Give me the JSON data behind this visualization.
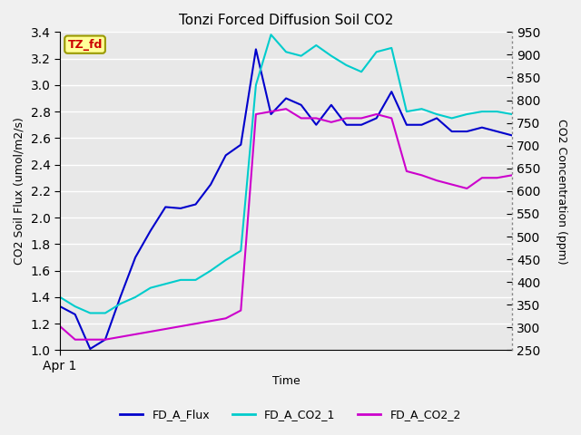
{
  "title": "Tonzi Forced Diffusion Soil CO2",
  "xlabel": "Time",
  "ylabel_left": "CO2 Soil Flux (umol/m2/s)",
  "ylabel_right": "CO2 Concentration (ppm)",
  "ylim_left": [
    1.0,
    3.4
  ],
  "ylim_right": [
    250,
    950
  ],
  "x_tick_labels": [
    "Apr 1"
  ],
  "tag_label": "TZ_fd",
  "tag_color": "#cc0000",
  "tag_bg": "#ffff99",
  "tag_edge": "#999900",
  "plot_bg_color": "#e8e8e8",
  "fig_bg_color": "#f0f0f0",
  "grid_color": "#ffffff",
  "fd_a_flux_x": [
    0,
    1,
    2,
    3,
    4,
    5,
    6,
    7,
    8,
    9,
    10,
    11,
    12,
    13,
    14,
    15,
    16,
    17,
    18,
    19,
    20,
    21,
    22,
    23,
    24,
    25,
    26,
    27,
    28,
    29,
    30
  ],
  "fd_a_flux_y": [
    1.33,
    1.27,
    1.01,
    1.08,
    1.4,
    1.7,
    1.9,
    2.08,
    2.07,
    2.1,
    2.25,
    2.47,
    2.55,
    3.27,
    2.78,
    2.9,
    2.85,
    2.7,
    2.85,
    2.7,
    2.7,
    2.75,
    2.95,
    2.7,
    2.7,
    2.75,
    2.65,
    2.65,
    2.68,
    2.65,
    2.62
  ],
  "fd_a_co2_1_x": [
    0,
    1,
    2,
    3,
    4,
    5,
    6,
    7,
    8,
    9,
    10,
    11,
    12,
    13,
    14,
    15,
    16,
    17,
    18,
    19,
    20,
    21,
    22,
    23,
    24,
    25,
    26,
    27,
    28,
    29,
    30
  ],
  "fd_a_co2_1_y": [
    1.4,
    1.33,
    1.28,
    1.28,
    1.35,
    1.4,
    1.47,
    1.5,
    1.53,
    1.53,
    1.6,
    1.68,
    1.75,
    3.0,
    3.38,
    3.25,
    3.22,
    3.3,
    3.22,
    3.15,
    3.1,
    3.25,
    3.28,
    2.8,
    2.82,
    2.78,
    2.75,
    2.78,
    2.8,
    2.8,
    2.78
  ],
  "fd_a_co2_2_x": [
    0,
    1,
    2,
    3,
    4,
    5,
    6,
    7,
    8,
    9,
    10,
    11,
    12,
    13,
    14,
    15,
    16,
    17,
    18,
    19,
    20,
    21,
    22,
    23,
    24,
    25,
    26,
    27,
    28,
    29,
    30
  ],
  "fd_a_co2_2_y": [
    1.18,
    1.08,
    1.08,
    1.08,
    1.1,
    1.12,
    1.14,
    1.16,
    1.18,
    1.2,
    1.22,
    1.24,
    1.3,
    2.78,
    2.8,
    2.82,
    2.75,
    2.75,
    2.72,
    2.75,
    2.75,
    2.78,
    2.75,
    2.35,
    2.32,
    2.28,
    2.25,
    2.22,
    2.3,
    2.3,
    2.32
  ],
  "flux_color": "#0000cc",
  "co2_1_color": "#00cccc",
  "co2_2_color": "#cc00cc",
  "line_width": 1.5,
  "legend_labels": [
    "FD_A_Flux",
    "FD_A_CO2_1",
    "FD_A_CO2_2"
  ],
  "right_yticks": [
    250,
    300,
    350,
    400,
    450,
    500,
    550,
    600,
    650,
    700,
    750,
    800,
    850,
    900,
    950
  ],
  "left_yticks": [
    1.0,
    1.2,
    1.4,
    1.6,
    1.8,
    2.0,
    2.2,
    2.4,
    2.6,
    2.8,
    3.0,
    3.2,
    3.4
  ]
}
